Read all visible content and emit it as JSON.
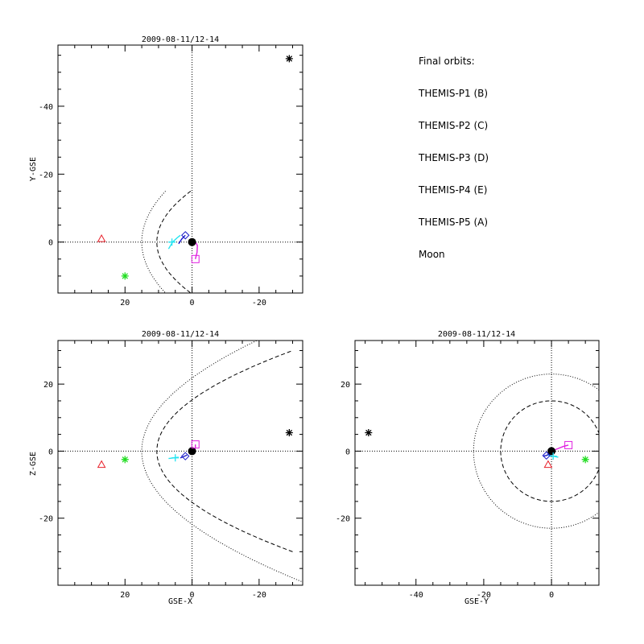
{
  "colors": {
    "p1": "#e8202a",
    "p2": "#22dd22",
    "p3": "#22e4f0",
    "p4": "#1a1ac8",
    "p5": "#e020e0",
    "moon": "#000000"
  },
  "legend": {
    "title": "Final orbits:",
    "items": [
      {
        "label": "THEMIS-P1 (B)",
        "color_key": "p1"
      },
      {
        "label": "THEMIS-P2 (C)",
        "color_key": "p2"
      },
      {
        "label": "THEMIS-P3 (D)",
        "color_key": "p3"
      },
      {
        "label": "THEMIS-P4 (E)",
        "color_key": "p4"
      },
      {
        "label": "THEMIS-P5 (A)",
        "color_key": "p5"
      },
      {
        "label": "Moon",
        "color_key": "moon"
      }
    ]
  },
  "chart_data": [
    {
      "type": "scatter",
      "title": "2009-08-11/12-14",
      "xlabel": "",
      "ylabel": "Y-GSE",
      "xlim": [
        40,
        -33
      ],
      "ylim": [
        15,
        -58
      ],
      "xticks": [
        20,
        0,
        -20
      ],
      "yticks": [
        -40,
        -20,
        0
      ],
      "tick_labels_x": [
        "20",
        "0",
        "-20"
      ],
      "tick_labels_y": [
        "-40",
        "-20",
        "0"
      ],
      "grid": false,
      "points": [
        {
          "name": "P1",
          "x": 27,
          "y": -1,
          "marker": "triangle",
          "color_key": "p1"
        },
        {
          "name": "P2",
          "x": 20,
          "y": 10,
          "marker": "asterisk",
          "color_key": "p2"
        },
        {
          "name": "P3",
          "x": 6,
          "y": 0,
          "marker": "plus",
          "color_key": "p3"
        },
        {
          "name": "P4",
          "x": 2,
          "y": -2,
          "marker": "diamond",
          "color_key": "p4"
        },
        {
          "name": "P5",
          "x": -1,
          "y": 5,
          "marker": "square",
          "color_key": "p5"
        },
        {
          "name": "Moon",
          "x": -29,
          "y": -54,
          "marker": "asterisk",
          "color_key": "moon"
        }
      ],
      "tracks": [
        {
          "name": "P3",
          "color_key": "p3",
          "x": [
            7,
            5.8,
            4.5,
            3.5
          ],
          "y": [
            2,
            0,
            -1.2,
            -2
          ]
        },
        {
          "name": "P4",
          "color_key": "p4",
          "x": [
            4,
            3,
            2
          ],
          "y": [
            0.5,
            -1,
            -2
          ]
        },
        {
          "name": "P5",
          "color_key": "p5",
          "x": [
            -1,
            -1.5,
            -1.6,
            -0.8,
            0
          ],
          "y": [
            5,
            3,
            1,
            -0.3,
            0
          ]
        }
      ],
      "boundaries": [
        {
          "name": "bow shock",
          "style": "dotted",
          "x0": 15,
          "k": 0.0315,
          "span": [
            -15,
            60
          ]
        },
        {
          "name": "magnetopause",
          "style": "dashed",
          "x0": 10.5,
          "k": 0.045,
          "span": [
            -15,
            40
          ]
        }
      ]
    },
    {
      "type": "scatter",
      "title": "2009-08-11/12-14",
      "xlabel": "GSE-X",
      "ylabel": "Z-GSE",
      "xlim": [
        40,
        -33
      ],
      "ylim": [
        -40,
        33
      ],
      "xticks": [
        20,
        0,
        -20
      ],
      "yticks": [
        20,
        0,
        -20
      ],
      "tick_labels_x": [
        "20",
        "0",
        "-20"
      ],
      "tick_labels_y": [
        "20",
        "0",
        "-20"
      ],
      "grid": false,
      "points": [
        {
          "name": "P1",
          "x": 27,
          "y": -4,
          "marker": "triangle",
          "color_key": "p1"
        },
        {
          "name": "P2",
          "x": 20,
          "y": -2.5,
          "marker": "asterisk",
          "color_key": "p2"
        },
        {
          "name": "P3",
          "x": 5,
          "y": -2,
          "marker": "plus",
          "color_key": "p3"
        },
        {
          "name": "P4",
          "x": 2,
          "y": -1.5,
          "marker": "diamond",
          "color_key": "p4"
        },
        {
          "name": "P5",
          "x": -1,
          "y": 2,
          "marker": "square",
          "color_key": "p5"
        },
        {
          "name": "Moon",
          "x": -29,
          "y": 5.5,
          "marker": "asterisk",
          "color_key": "moon"
        }
      ],
      "tracks": [
        {
          "name": "P3",
          "color_key": "p3",
          "x": [
            7,
            5.5,
            4
          ],
          "y": [
            -2.2,
            -2,
            -1.8
          ]
        },
        {
          "name": "P4",
          "color_key": "p4",
          "x": [
            3.5,
            2.5,
            1.5
          ],
          "y": [
            -2,
            -1.6,
            -1.2
          ]
        },
        {
          "name": "P5",
          "color_key": "p5",
          "x": [
            -1,
            -1,
            -0.5
          ],
          "y": [
            2,
            1,
            0.2
          ]
        }
      ],
      "boundaries": [
        {
          "name": "bow shock",
          "style": "dotted",
          "x0": 15,
          "k": 0.0315,
          "span": [
            -45,
            45
          ]
        },
        {
          "name": "magnetopause",
          "style": "dashed",
          "x0": 10.5,
          "k": 0.045,
          "span": [
            -30,
            30
          ]
        }
      ]
    },
    {
      "type": "scatter",
      "title": "2009-08-11/12-14",
      "xlabel": "GSE-Y",
      "ylabel": "",
      "xlim": [
        -58,
        14
      ],
      "ylim": [
        -40,
        33
      ],
      "xticks": [
        -40,
        -20,
        0
      ],
      "yticks": [
        20,
        0,
        -20
      ],
      "tick_labels_x": [
        "-40",
        "-20",
        "0"
      ],
      "tick_labels_y": [
        "20",
        "0",
        "-20"
      ],
      "grid": false,
      "points": [
        {
          "name": "P1",
          "x": -1,
          "y": -4,
          "marker": "triangle",
          "color_key": "p1"
        },
        {
          "name": "P2",
          "x": 10,
          "y": -2.5,
          "marker": "asterisk",
          "color_key": "p2"
        },
        {
          "name": "P3",
          "x": 0.5,
          "y": -1.5,
          "marker": "plus",
          "color_key": "p3"
        },
        {
          "name": "P4",
          "x": -1.5,
          "y": -1.3,
          "marker": "diamond",
          "color_key": "p4"
        },
        {
          "name": "P5",
          "x": 5,
          "y": 1.8,
          "marker": "square",
          "color_key": "p5"
        },
        {
          "name": "Moon",
          "x": -54,
          "y": 5.5,
          "marker": "asterisk",
          "color_key": "moon"
        }
      ],
      "tracks": [
        {
          "name": "P3",
          "color_key": "p3",
          "x": [
            -1,
            0.5,
            2
          ],
          "y": [
            -1.2,
            -1.5,
            -1.8
          ]
        },
        {
          "name": "P4",
          "color_key": "p4",
          "x": [
            -2.5,
            -1.5,
            -0.5
          ],
          "y": [
            -1.5,
            -1.3,
            -0.8
          ]
        },
        {
          "name": "P5",
          "color_key": "p5",
          "x": [
            0,
            2,
            3.5,
            5
          ],
          "y": [
            0,
            0.8,
            1.4,
            1.8
          ]
        }
      ],
      "circles": [
        {
          "name": "bow shock",
          "style": "dotted",
          "r": 23
        },
        {
          "name": "magnetopause",
          "style": "dashed",
          "r": 15
        }
      ]
    }
  ]
}
